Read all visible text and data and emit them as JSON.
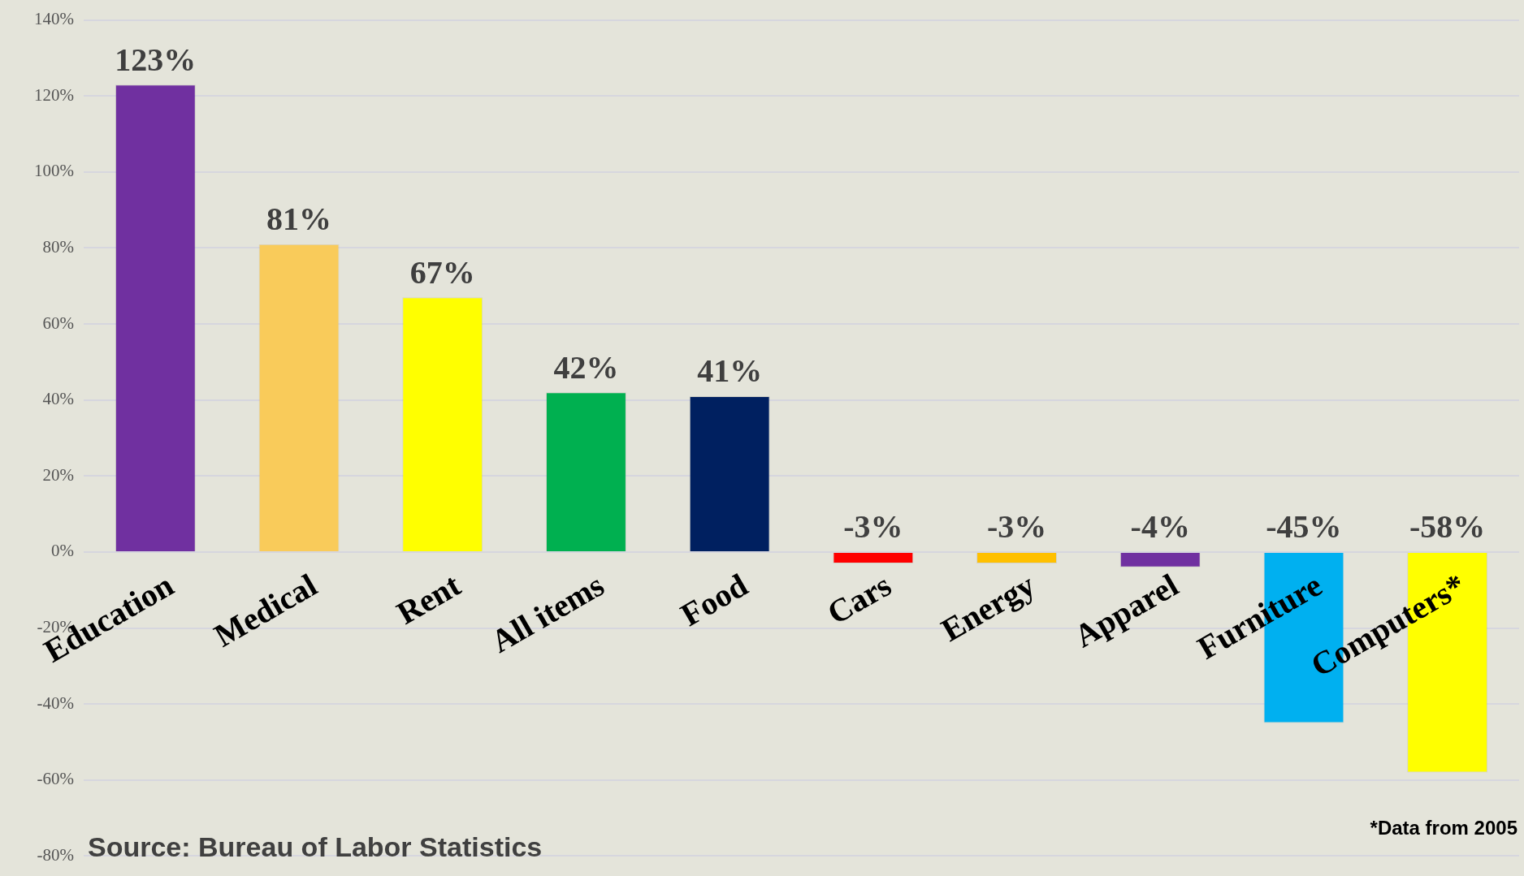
{
  "chart_data": {
    "type": "bar",
    "categories": [
      "Education",
      "Medical",
      "Rent",
      "All items",
      "Food",
      "Cars",
      "Energy",
      "Apparel",
      "Furniture",
      "Computers*"
    ],
    "values": [
      123,
      81,
      67,
      42,
      41,
      -3,
      -3,
      -4,
      -45,
      -58
    ],
    "colors": [
      "#7030a0",
      "#f9cb5a",
      "#ffff00",
      "#00b050",
      "#002060",
      "#ff0000",
      "#ffc000",
      "#7030a0",
      "#00b0f0",
      "#ffff00"
    ],
    "value_labels": [
      "123%",
      "81%",
      "67%",
      "42%",
      "41%",
      "-3%",
      "-3%",
      "-4%",
      "-45%",
      "-58%"
    ],
    "ylim": [
      -80,
      140
    ],
    "yticks": [
      {
        "value": -80,
        "label": "-80%"
      },
      {
        "value": -60,
        "label": "-60%"
      },
      {
        "value": -40,
        "label": "-40%"
      },
      {
        "value": -20,
        "label": "-20%"
      },
      {
        "value": 0,
        "label": "0%"
      },
      {
        "value": 20,
        "label": "20%"
      },
      {
        "value": 40,
        "label": "40%"
      },
      {
        "value": 60,
        "label": "60%"
      },
      {
        "value": 80,
        "label": "80%"
      },
      {
        "value": 100,
        "label": "100%"
      },
      {
        "value": 120,
        "label": "120%"
      },
      {
        "value": 140,
        "label": "140%"
      }
    ],
    "grid": "y",
    "legend": false,
    "annotations": [
      "Source: Bureau of Labor Statistics",
      "*Data from 2005"
    ]
  }
}
